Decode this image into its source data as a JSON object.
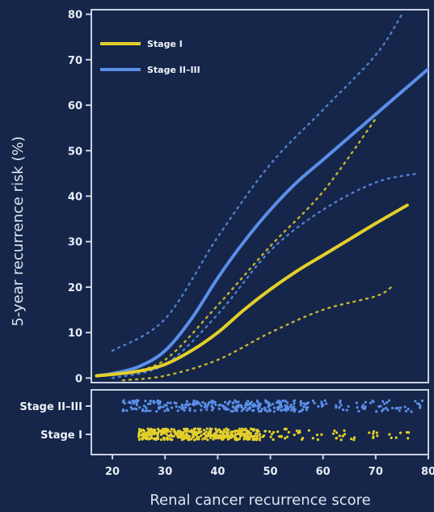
{
  "chart_data": {
    "type": "line",
    "title": "",
    "xlabel": "Renal cancer recurrence score",
    "ylabel": "5-year recurrence risk (%)",
    "xlim": [
      16,
      80
    ],
    "ylim": [
      -1,
      81
    ],
    "xticks": [
      20,
      30,
      40,
      50,
      60,
      70,
      80
    ],
    "yticks": [
      0,
      10,
      20,
      30,
      40,
      50,
      60,
      70,
      80
    ],
    "legend_position": "top-left",
    "colors": {
      "background": "#15264a",
      "stage1": "#e4cf2a",
      "stage23": "#5b8fe8",
      "axis": "#c9d2e2"
    },
    "series": [
      {
        "name": "Stage I",
        "x": [
          17,
          20,
          25,
          30,
          35,
          40,
          45,
          50,
          55,
          60,
          65,
          70,
          76
        ],
        "values": [
          0.5,
          0.8,
          1.5,
          3,
          6,
          10,
          15,
          19.5,
          23.5,
          27,
          30.5,
          34,
          38
        ]
      },
      {
        "name": "Stage II–III",
        "x": [
          17,
          20,
          25,
          30,
          35,
          40,
          45,
          50,
          55,
          60,
          65,
          70,
          75,
          80
        ],
        "values": [
          0.5,
          1,
          2.5,
          6,
          13,
          22,
          30,
          37,
          43,
          48,
          53,
          58,
          63,
          68
        ]
      }
    ],
    "confidence_bands": [
      {
        "series": "Stage I",
        "lower": {
          "x": [
            22,
            30,
            40,
            50,
            60,
            70,
            73
          ],
          "values": [
            -0.5,
            0.5,
            4,
            10,
            15,
            18,
            20
          ]
        },
        "upper": {
          "x": [
            22,
            30,
            40,
            50,
            60,
            70
          ],
          "values": [
            1,
            4,
            16,
            29,
            41,
            57
          ]
        }
      },
      {
        "series": "Stage II–III",
        "lower": {
          "x": [
            20,
            30,
            40,
            50,
            60,
            70,
            78
          ],
          "values": [
            0,
            3,
            14,
            28,
            37,
            43,
            45
          ]
        },
        "upper": {
          "x": [
            20,
            30,
            40,
            50,
            60,
            70,
            75
          ],
          "values": [
            6,
            13,
            31,
            47,
            59,
            71,
            80
          ]
        }
      }
    ],
    "rug": [
      {
        "label": "Stage II–III",
        "dense_range": [
          22,
          56
        ],
        "sparse_range": [
          56,
          79
        ]
      },
      {
        "label": "Stage I",
        "dense_range": [
          25,
          48
        ],
        "sparse_range": [
          48,
          77
        ]
      }
    ]
  }
}
